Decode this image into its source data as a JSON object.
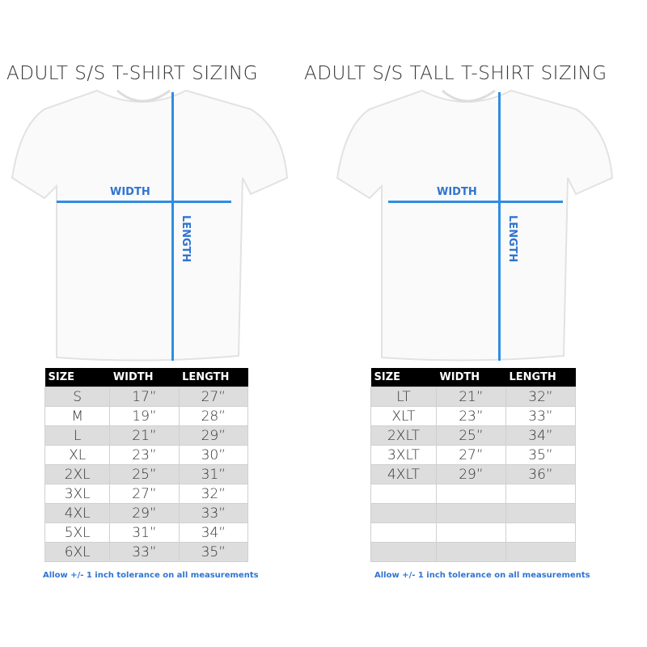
{
  "left": {
    "title": "ADULT S/S T-SHIRT SIZING",
    "width_label": "WIDTH",
    "length_label": "LENGTH",
    "headers": [
      "SIZE",
      "WIDTH",
      "LENGTH"
    ],
    "rows": [
      [
        "S",
        "17”",
        "27”"
      ],
      [
        "M",
        "19”",
        "28”"
      ],
      [
        "L",
        "21”",
        "29”"
      ],
      [
        "XL",
        "23”",
        "30”"
      ],
      [
        "2XL",
        "25”",
        "31”"
      ],
      [
        "3XL",
        "27”",
        "32”"
      ],
      [
        "4XL",
        "29”",
        "33”"
      ],
      [
        "5XL",
        "31”",
        "34”"
      ],
      [
        "6XL",
        "33”",
        "35”"
      ]
    ],
    "note": "Allow +/- 1 inch tolerance on all measurements"
  },
  "right": {
    "title": "ADULT S/S TALL T-SHIRT SIZING",
    "width_label": "WIDTH",
    "length_label": "LENGTH",
    "headers": [
      "SIZE",
      "WIDTH",
      "LENGTH"
    ],
    "rows": [
      [
        "LT",
        "21”",
        "32”"
      ],
      [
        "XLT",
        "23”",
        "33”"
      ],
      [
        "2XLT",
        "25”",
        "34”"
      ],
      [
        "3XLT",
        "27”",
        "35”"
      ],
      [
        "4XLT",
        "29”",
        "36”"
      ],
      [
        "",
        "",
        ""
      ],
      [
        "",
        "",
        ""
      ],
      [
        "",
        "",
        ""
      ],
      [
        "",
        "",
        ""
      ]
    ],
    "note": "Allow +/- 1 inch tolerance on all measurements"
  },
  "colors": {
    "measure_line": "#2f8de4",
    "label": "#2f74d0"
  }
}
